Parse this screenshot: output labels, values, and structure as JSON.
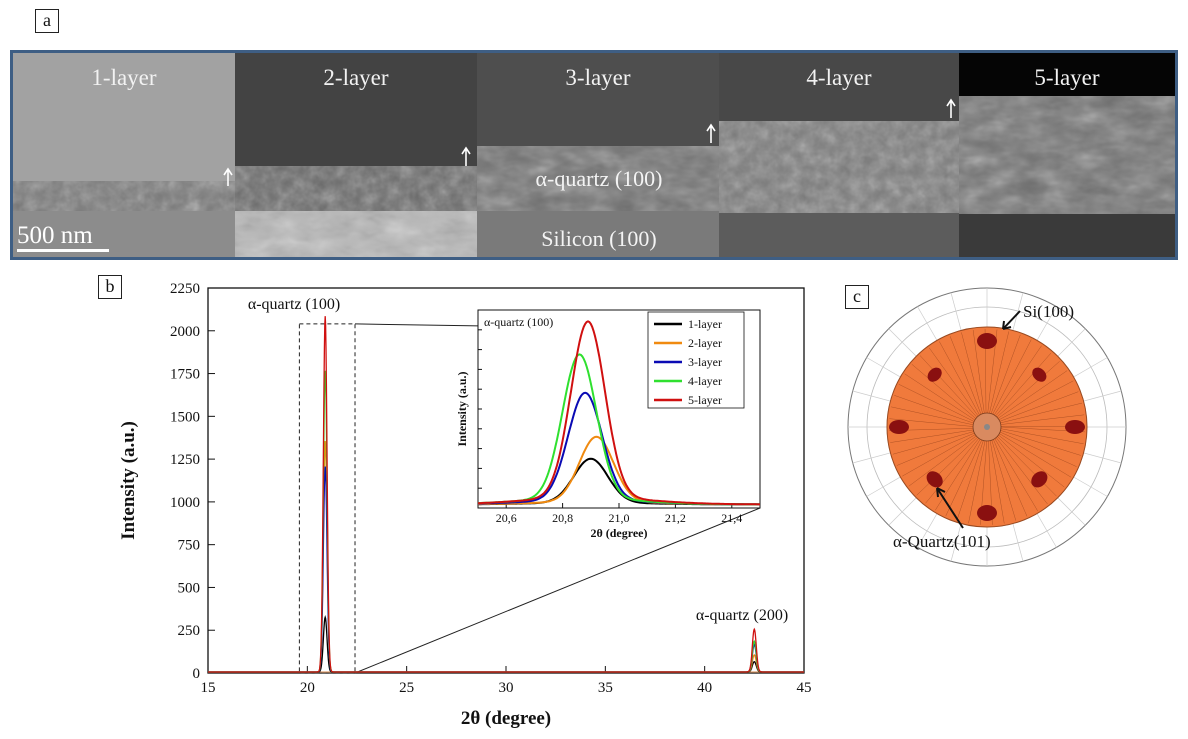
{
  "panel_a": {
    "tag": "a",
    "layers": [
      "1-layer",
      "2-layer",
      "3-layer",
      "4-layer",
      "5-layer"
    ],
    "film_label": "α-quartz (100)",
    "substrate_label": "Silicon (100)",
    "scale_bar": "500 nm"
  },
  "panel_b": {
    "tag": "b"
  },
  "panel_c": {
    "tag": "c",
    "label_top": "Si(100)",
    "label_bottom": "α-Quartz(101)"
  },
  "colors": {
    "1-layer": "#000000",
    "2-layer": "#f08a10",
    "3-layer": "#0a0ab4",
    "4-layer": "#2fe02f",
    "5-layer": "#d01010",
    "sem_border": "#3e5e84",
    "pole_fill": "#f07a3c",
    "pole_spot": "#8a1010"
  },
  "chart_data": [
    {
      "type": "line",
      "xlabel": "2θ (degree)",
      "ylabel": "Intensity (a.u.)",
      "xlim": [
        15,
        45
      ],
      "ylim": [
        0,
        2250
      ],
      "xticks": [
        15,
        20,
        25,
        30,
        35,
        40,
        45
      ],
      "yticks": [
        0,
        250,
        500,
        750,
        1000,
        1250,
        1500,
        1750,
        2000,
        2250
      ],
      "annotations": [
        "α-quartz (100)",
        "α-quartz (200)"
      ],
      "peaks": [
        20.9,
        42.5
      ],
      "series": [
        {
          "name": "1-layer",
          "peak_100": 320,
          "peak_200": 60
        },
        {
          "name": "2-layer",
          "peak_100": 1350,
          "peak_200": 100
        },
        {
          "name": "3-layer",
          "peak_100": 1200,
          "peak_200": 160
        },
        {
          "name": "4-layer",
          "peak_100": 1760,
          "peak_200": 180
        },
        {
          "name": "5-layer",
          "peak_100": 2080,
          "peak_200": 250
        }
      ]
    },
    {
      "type": "line",
      "title": "α-quartz (100)",
      "xlabel": "2θ (degree)",
      "ylabel": "Intensity (a.u.)",
      "xlim": [
        20.5,
        21.5
      ],
      "xticks": [
        "20,6",
        "20,8",
        "21,0",
        "21,2",
        "21,4"
      ],
      "legend": "top-right",
      "series": [
        {
          "name": "1-layer",
          "center": 20.9,
          "peak": 0.25
        },
        {
          "name": "2-layer",
          "center": 20.92,
          "peak": 0.37
        },
        {
          "name": "3-layer",
          "center": 20.88,
          "peak": 0.61
        },
        {
          "name": "4-layer",
          "center": 20.86,
          "peak": 0.82
        },
        {
          "name": "5-layer",
          "center": 20.89,
          "peak": 1.0
        }
      ]
    }
  ]
}
